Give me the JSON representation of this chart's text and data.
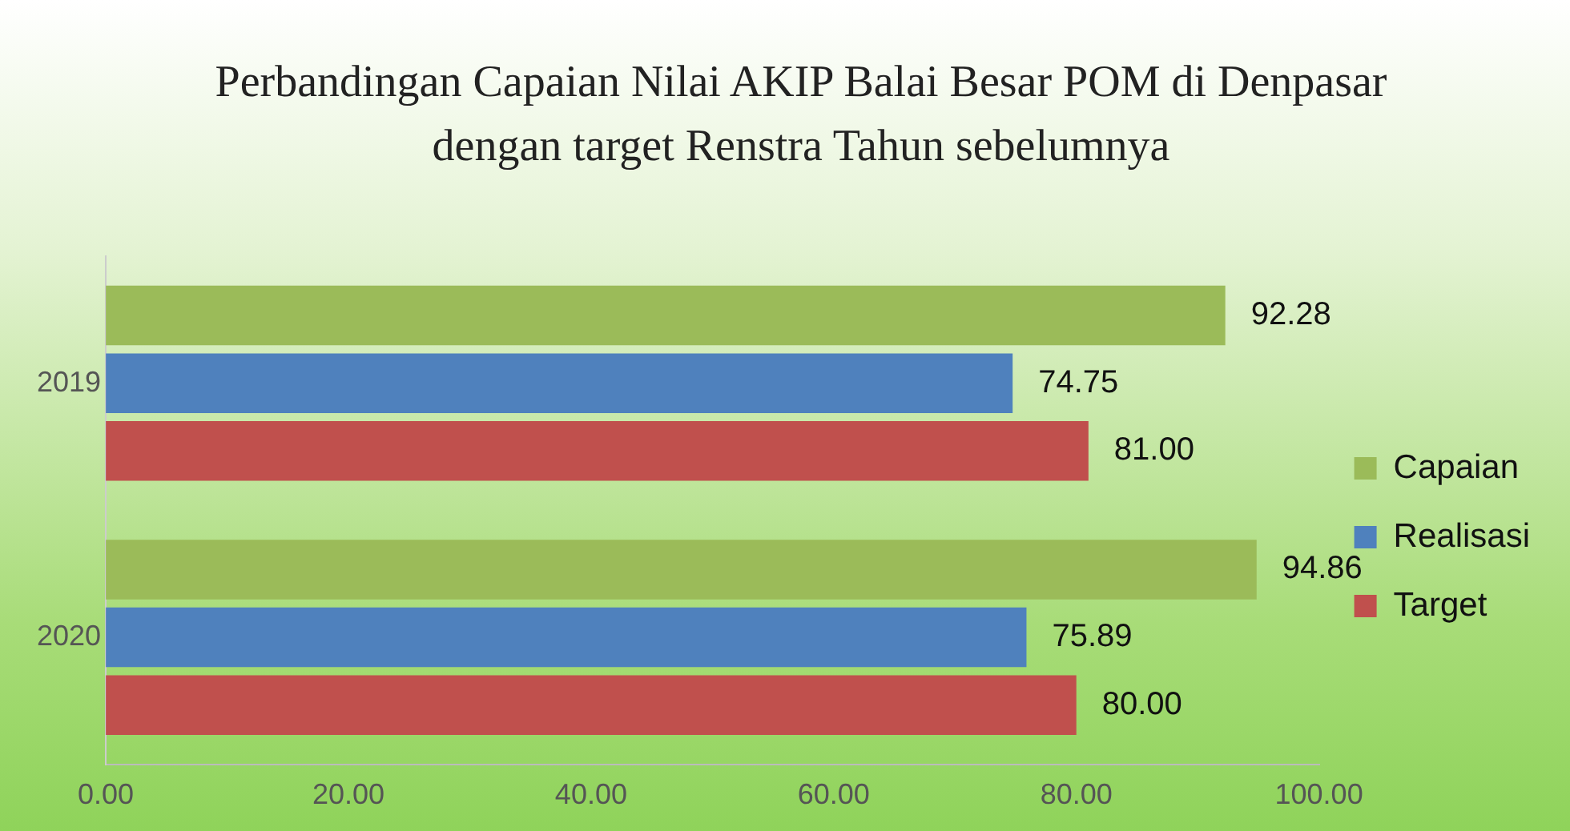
{
  "chart_data": {
    "type": "bar",
    "orientation": "horizontal",
    "title": "Perbandingan Capaian Nilai AKIP Balai Besar POM di Denpasar dengan target Renstra Tahun sebelumnya",
    "categories": [
      "2019",
      "2020"
    ],
    "series": [
      {
        "name": "Capaian",
        "color": "#9bbb59",
        "values": [
          92.28,
          94.86
        ],
        "value_labels": [
          "92.28",
          "94.86"
        ]
      },
      {
        "name": "Realisasi",
        "color": "#4f81bd",
        "values": [
          74.75,
          75.89
        ],
        "value_labels": [
          "74.75",
          "75.89"
        ]
      },
      {
        "name": "Target",
        "color": "#c0504d",
        "values": [
          81,
          80
        ],
        "value_labels": [
          "81.00",
          "80.00"
        ]
      }
    ],
    "xlim": [
      0,
      100
    ],
    "xticks": [
      {
        "value": 0,
        "label": "0.00"
      },
      {
        "value": 20,
        "label": "20.00"
      },
      {
        "value": 40,
        "label": "40.00"
      },
      {
        "value": 60,
        "label": "60.00"
      },
      {
        "value": 80,
        "label": "80.00"
      },
      {
        "value": 100,
        "label": "100.00"
      }
    ],
    "grid": false,
    "legend": "right"
  }
}
